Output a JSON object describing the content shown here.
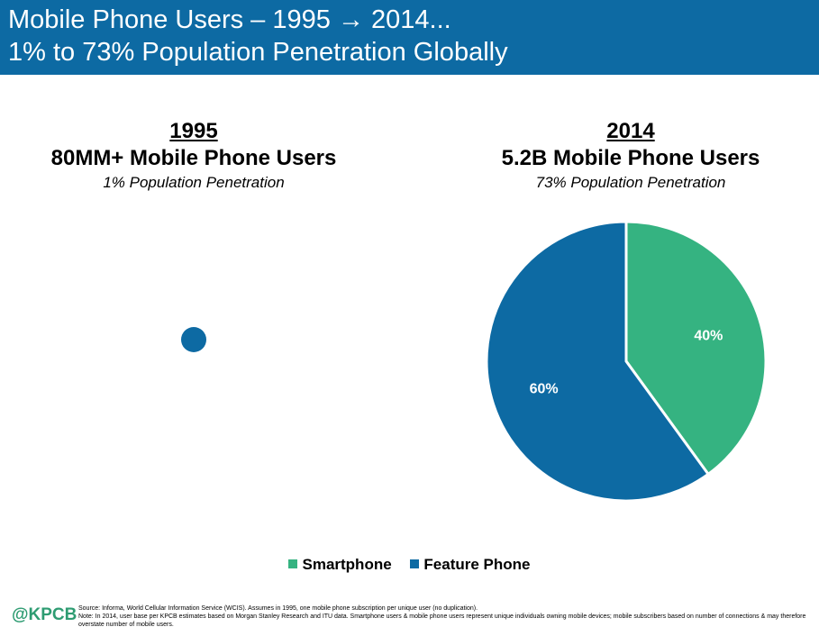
{
  "header": {
    "line1": "Mobile Phone Users – 1995 → 2014...",
    "line2": "1% to 73% Population Penetration Globally"
  },
  "colors": {
    "header_bg": "#0d6aa3",
    "smartphone": "#35b381",
    "feature_phone": "#0d6aa3"
  },
  "chart_data": [
    {
      "type": "pie",
      "year": "1995",
      "users": "80MM+ Mobile Phone Users",
      "penetration": "1% Population Penetration"
    },
    {
      "type": "pie",
      "year": "2014",
      "users": "5.2B Mobile Phone Users",
      "penetration": "73% Population Penetration",
      "slices": [
        {
          "name": "Smartphone",
          "value": 40,
          "label": "40%",
          "color": "#35b381"
        },
        {
          "name": "Feature Phone",
          "value": 60,
          "label": "60%",
          "color": "#0d6aa3"
        }
      ],
      "legend_position": "bottom"
    }
  ],
  "legend": {
    "smartphone": "Smartphone",
    "feature_phone": "Feature Phone"
  },
  "footer": {
    "logo": "@KPCB",
    "source": "Source: Informa, World Cellular Information Service (WCIS). Assumes in 1995, one mobile phone subscription per unique user (no duplication).",
    "note": "Note: In 2014, user base per KPCB estimates based on Morgan Stanley Research and ITU data. Smartphone users & mobile phone users represent unique individuals owning mobile devices; mobile subscribers based on number of connections & may therefore overstate number of mobile users."
  }
}
